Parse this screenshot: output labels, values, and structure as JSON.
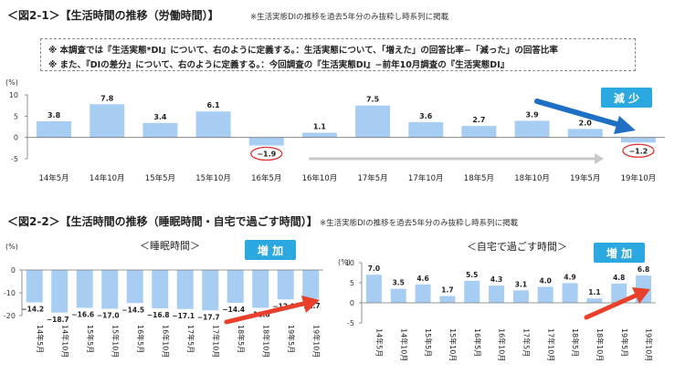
{
  "figure1": {
    "title": "＜図2-1＞【生活時間の推移（労働時間）】",
    "note": "※生活実態DIの推移を過去5年分のみ抜粋し時系列に掲載",
    "definitions": [
      "※ 本調査では『生活実態*DI』について、右のように定義する。：生活実態について、「増えた」の回答比率−「減った」の回答比率",
      "※ また、『DIの差分』について、右のように定義する。：今回調査の『生活実態DI』−前年10月調査の『生活実態DI』"
    ],
    "badge": "減 少",
    "badge_color": "#2ca8e0",
    "arrow_color": "#1f6fc4"
  },
  "figure2": {
    "title": "＜図2-2＞【生活時間の推移（睡眠時間・自宅で過ごす時間）】",
    "note": "※生活実態DIの推移を過去5年分のみ抜粋し時系列に掲載",
    "badge_left": "増 加",
    "badge_right": "増 加",
    "badge_color": "#2ca8e0",
    "arrow_color": "#e8402a"
  },
  "chart_data": [
    {
      "type": "bar",
      "title": "",
      "ylabel": "(%)",
      "ylim": [
        -5,
        10
      ],
      "yticks": [
        10,
        5,
        0,
        -5
      ],
      "categories": [
        "14年5月",
        "14年10月",
        "15年5月",
        "15年10月",
        "16年5月",
        "16年10月",
        "17年5月",
        "17年10月",
        "18年5月",
        "18年10月",
        "19年5月",
        "19年10月"
      ],
      "values": [
        3.8,
        7.8,
        3.4,
        6.1,
        -1.9,
        1.1,
        7.5,
        3.6,
        2.7,
        3.9,
        2.0,
        -1.2
      ],
      "circled": [
        "16年5月",
        "19年10月"
      ],
      "bar_color": "#a8cdf2",
      "circle_color": "#e03030",
      "gray_arrow_color": "#c8c8c8"
    },
    {
      "type": "bar",
      "title": "＜睡眠時間＞",
      "ylabel": "(%)",
      "ylim": [
        -20,
        0
      ],
      "yticks": [
        0,
        -10,
        -20
      ],
      "categories": [
        "14年5月",
        "14年10月",
        "15年5月",
        "15年10月",
        "16年5月",
        "16年10月",
        "17年5月",
        "17年10月",
        "18年5月",
        "18年10月",
        "19年5月",
        "19年10月"
      ],
      "values": [
        -14.2,
        -18.7,
        -16.6,
        -17.0,
        -14.5,
        -16.8,
        -17.1,
        -17.7,
        -14.4,
        -16.6,
        -12.9,
        -12.7
      ],
      "bar_color": "#a8cdf2"
    },
    {
      "type": "bar",
      "title": "＜自宅で過ごす時間＞",
      "ylabel": "(%)",
      "ylim": [
        -5,
        10
      ],
      "yticks": [
        10,
        5,
        0,
        -5
      ],
      "categories": [
        "14年5月",
        "14年10月",
        "15年5月",
        "15年10月",
        "16年5月",
        "16年10月",
        "17年5月",
        "17年10月",
        "18年5月",
        "18年10月",
        "19年5月",
        "19年10月"
      ],
      "values": [
        7.0,
        3.5,
        4.6,
        1.7,
        5.5,
        4.3,
        3.1,
        4.0,
        4.9,
        1.1,
        4.8,
        6.8
      ],
      "bar_color": "#a8cdf2"
    }
  ]
}
